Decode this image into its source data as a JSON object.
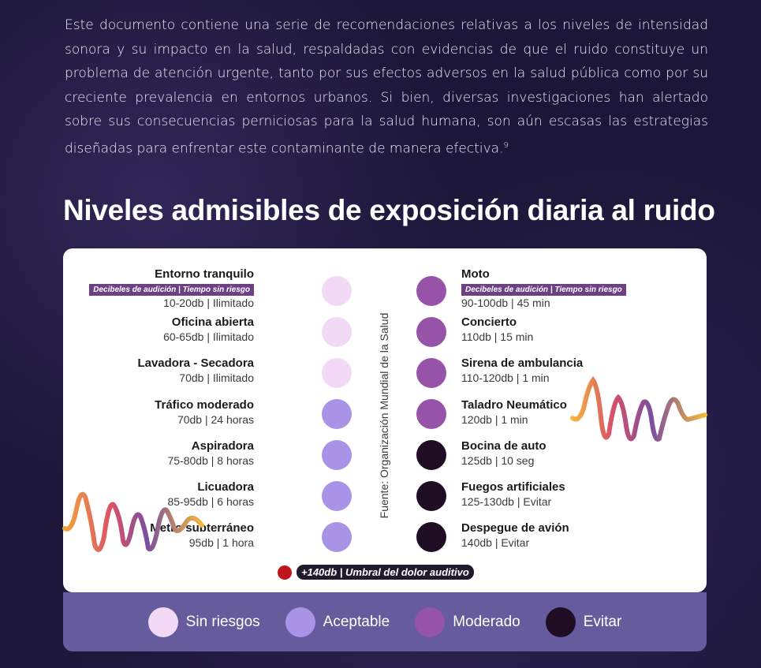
{
  "intro": {
    "text": "Este documento contiene una serie de recomendaciones relativas a los niveles de intensidad sonora y su impacto en la salud, respaldadas con evidencias de que el ruido constituye un problema de atención urgente, tanto por sus efectos adversos en la salud pública como por su creciente prevalencia en entornos urbanos. Si bien, diversas investigaciones han alertado sobre sus consecuencias perniciosas para la salud humana, son aún escasas las estrategias diseñadas para enfrentar este contaminante de manera efectiva.",
    "footnote": "9"
  },
  "heading": "Niveles admisibles de exposición diaria al ruido",
  "tag_label": "Decibeles de audición | Tiempo sin riesgo",
  "source": "Fuente: Organización Mundial de la Salud",
  "colors": {
    "sin_riesgos": "#f2d9f6",
    "aceptable": "#a893e6",
    "moderado": "#9653a8",
    "evitar": "#1f0d24",
    "pain": "#c0141c"
  },
  "left_items": [
    {
      "name": "Entorno tranquilo",
      "value": "10-20db | Ilimitado",
      "level": "sin_riesgos"
    },
    {
      "name": "Oficina abierta",
      "value": "60-65db | Ilimitado",
      "level": "sin_riesgos"
    },
    {
      "name": "Lavadora - Secadora",
      "value": "70db | Ilimitado",
      "level": "sin_riesgos"
    },
    {
      "name": "Tráfico moderado",
      "value": "70db | 24 horas",
      "level": "aceptable"
    },
    {
      "name": "Aspiradora",
      "value": "75-80db | 8 horas",
      "level": "aceptable"
    },
    {
      "name": "Licuadora",
      "value": "85-95db | 6 horas",
      "level": "aceptable"
    },
    {
      "name": "Metro subterráneo",
      "value": "95db | 1 hora",
      "level": "aceptable"
    }
  ],
  "right_items": [
    {
      "name": "Moto",
      "value": "90-100db | 45 min",
      "level": "moderado"
    },
    {
      "name": "Concierto",
      "value": "110db | 15 min",
      "level": "moderado"
    },
    {
      "name": "Sirena de ambulancia",
      "value": "110-120db | 1 min",
      "level": "moderado"
    },
    {
      "name": "Taladro Neumático",
      "value": "120db | 1 min",
      "level": "moderado"
    },
    {
      "name": "Bocina de auto",
      "value": "125db | 10 seg",
      "level": "evitar"
    },
    {
      "name": "Fuegos artificiales",
      "value": "125-130db | Evitar",
      "level": "evitar"
    },
    {
      "name": "Despegue de avión",
      "value": "140db | Evitar",
      "level": "evitar"
    }
  ],
  "pain_threshold": "+140db | Umbral del dolor auditivo",
  "legend": [
    {
      "label": "Sin riesgos",
      "level": "sin_riesgos"
    },
    {
      "label": "Aceptable",
      "level": "aceptable"
    },
    {
      "label": "Moderado",
      "level": "moderado"
    },
    {
      "label": "Evitar",
      "level": "evitar"
    }
  ]
}
